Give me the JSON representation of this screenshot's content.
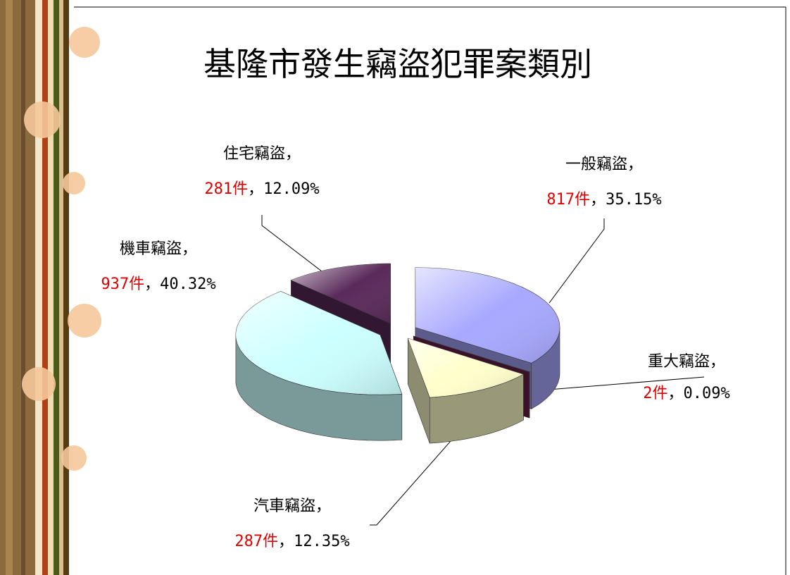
{
  "chart_data": {
    "type": "pie3d",
    "title": "基隆市發生竊盜犯罪案類別",
    "categories": [
      "一般竊盜，",
      "重大竊盜，",
      "汽車竊盜，",
      "機車竊盜，",
      "住宅竊盜，"
    ],
    "values": [
      817,
      2,
      287,
      937,
      281
    ],
    "value_labels": [
      "817件",
      "2件",
      "287件",
      "937件",
      "281件"
    ],
    "percents": [
      35.15,
      0.09,
      12.35,
      40.32,
      12.09
    ],
    "percent_labels": [
      "，35.15%",
      "，0.09%",
      "，12.35%",
      "，40.32%",
      "，12.09%"
    ],
    "colors": [
      "#a8a8ff",
      "#6a1f4a",
      "#ffffcc",
      "#ccffff",
      "#5a2a5a"
    ]
  }
}
